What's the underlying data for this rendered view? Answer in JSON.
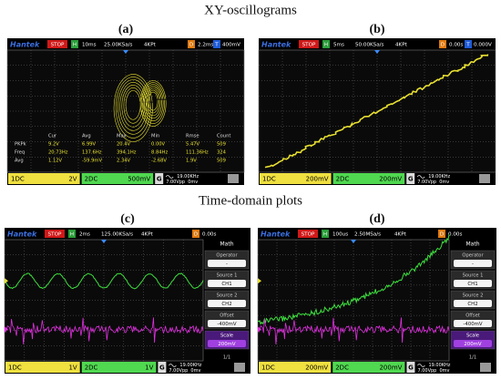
{
  "titles": {
    "xy": "XY-oscillograms",
    "time": "Time-domain plots"
  },
  "panels": [
    {
      "label": "(a)",
      "brand": "Hantek",
      "status": "STOP",
      "h": "H",
      "timebase": "10ms",
      "rate": "25.00KSa/s",
      "depth": "4KPt",
      "d": "D",
      "delay": "2.2ms",
      "t": "T",
      "trigger": "400mV",
      "ch1": {
        "name": "1DC",
        "scale": "2V"
      },
      "ch2": {
        "name": "2DC",
        "scale": "500mV"
      },
      "g": "G",
      "freq": "19.00KHz",
      "vpp": "7.00Vpp",
      "offset": "0mv",
      "measurements": {
        "columns": [
          "Cur",
          "Avg",
          "Max",
          "Min",
          "Rmse",
          "Count"
        ],
        "rows": [
          [
            "PKPk",
            "9.2V",
            "6.99V",
            "20.4V",
            "0.00V",
            "5.47V",
            "509"
          ],
          [
            "Freq",
            "20.73Hz",
            "137.6Hz",
            "394.1Hz",
            "8.84Hz",
            "111.36Hz",
            "324"
          ],
          [
            "Avg",
            "1.12V",
            "-59.9mV",
            "2.34V",
            "-2.68V",
            "1.9V",
            "509"
          ]
        ]
      }
    },
    {
      "label": "(b)",
      "brand": "Hantek",
      "status": "STOP",
      "h": "H",
      "timebase": "5ms",
      "rate": "50.00KSa/s",
      "depth": "4KPt",
      "d": "D",
      "delay": "0.00s",
      "t": "T",
      "trigger": "0.000V",
      "ch1": {
        "name": "1DC",
        "scale": "200mV"
      },
      "ch2": {
        "name": "2DC",
        "scale": "200mV"
      },
      "g": "G",
      "freq": "19.00KHz",
      "vpp": "7.00Vpp",
      "offset": "0mv"
    },
    {
      "label": "(c)",
      "brand": "Hantek",
      "status": "STOP",
      "h": "H",
      "timebase": "2ms",
      "rate": "125.00KSa/s",
      "depth": "4KPt",
      "d": "D",
      "delay": "0.00s",
      "ch1": {
        "name": "1DC",
        "scale": "1V"
      },
      "ch2": {
        "name": "2DC",
        "scale": "1V"
      },
      "g": "G",
      "freq": "19.00KHz",
      "vpp": "7.00Vpp",
      "offset": "0mv",
      "menu": {
        "title": "Math",
        "items": [
          {
            "label": "Operator",
            "value": "-"
          },
          {
            "label": "Source 1",
            "value": "CH1"
          },
          {
            "label": "Source 2",
            "value": "CH2"
          },
          {
            "label": "Offset",
            "value": "-400mV"
          },
          {
            "label": "Scale",
            "value": "200mV"
          }
        ],
        "page": "1/1"
      }
    },
    {
      "label": "(d)",
      "brand": "Hantek",
      "status": "STOP",
      "h": "H",
      "timebase": "100us",
      "rate": "2.50MSa/s",
      "depth": "4KPt",
      "d": "D",
      "delay": "0.00s",
      "ch1": {
        "name": "1DC",
        "scale": "200mV"
      },
      "ch2": {
        "name": "2DC",
        "scale": "200mV"
      },
      "g": "G",
      "freq": "19.00KHz",
      "vpp": "7.00Vpp",
      "offset": "0mv",
      "menu": {
        "title": "Math",
        "items": [
          {
            "label": "Operator",
            "value": "-"
          },
          {
            "label": "Source 1",
            "value": "CH1"
          },
          {
            "label": "Source 2",
            "value": "CH2"
          },
          {
            "label": "Offset",
            "value": "-400mV"
          },
          {
            "label": "Scale",
            "value": "200mV"
          }
        ],
        "page": "1/1"
      }
    }
  ]
}
